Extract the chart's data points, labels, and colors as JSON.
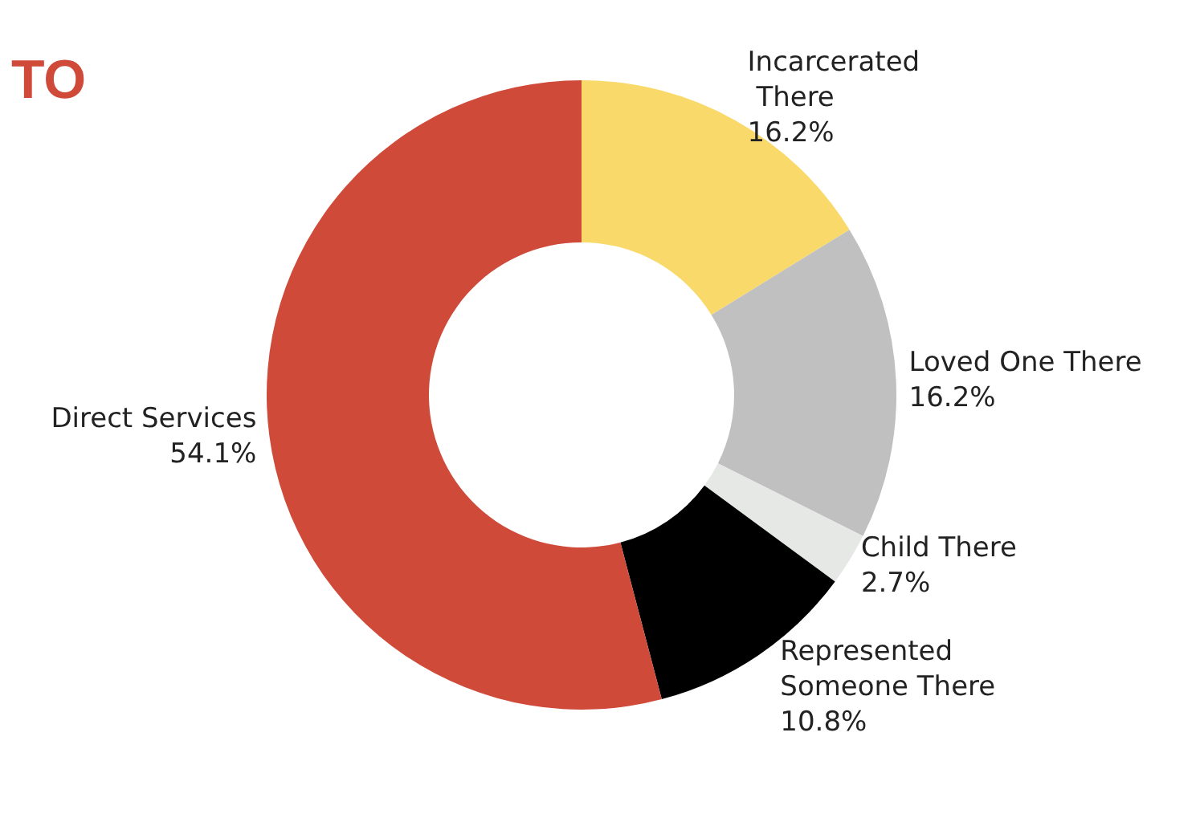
{
  "chart_data": {
    "type": "donut",
    "title": "TO",
    "categories": [
      "Incarcerated There",
      "Loved One There",
      "Child There",
      "Represented Someone There",
      "Direct Services"
    ],
    "values": [
      16.2,
      16.2,
      2.7,
      10.8,
      54.1
    ],
    "value_labels": [
      "16.2%",
      "16.2%",
      "2.7%",
      "10.8%",
      "54.1%"
    ],
    "colors": [
      "#f9d96a",
      "#c0c0c0",
      "#e6e8e6",
      "#000000",
      "#d04a3a"
    ],
    "legend": false
  }
}
